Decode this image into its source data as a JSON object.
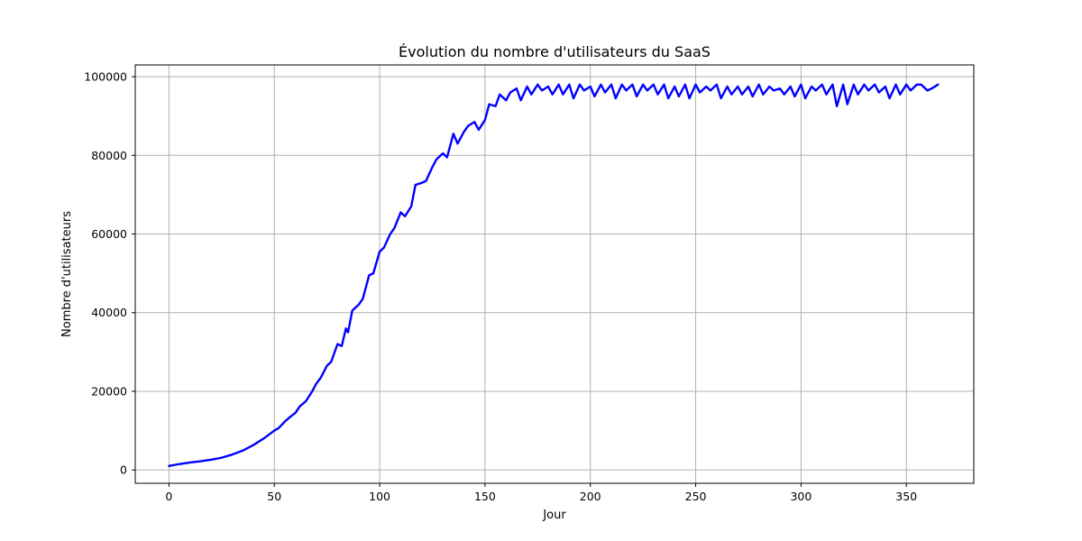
{
  "chart_data": {
    "type": "line",
    "title": "Évolution du nombre d'utilisateurs du SaaS",
    "xlabel": "Jour",
    "ylabel": "Nombre d'utilisateurs",
    "xlim": [
      -16,
      382
    ],
    "ylim": [
      -3400,
      103000
    ],
    "xticks": [
      0,
      50,
      100,
      150,
      200,
      250,
      300,
      350
    ],
    "yticks": [
      0,
      20000,
      40000,
      60000,
      80000,
      100000
    ],
    "grid": true,
    "colors": {
      "line": "#0000ff",
      "grid": "#b0b0b0",
      "axes": "#000000"
    },
    "series": [
      {
        "name": "",
        "x": [
          0,
          5,
          10,
          15,
          20,
          25,
          30,
          35,
          40,
          45,
          50,
          52,
          55,
          58,
          60,
          62,
          65,
          68,
          70,
          72,
          75,
          77,
          80,
          82,
          84,
          85,
          87,
          90,
          92,
          95,
          97,
          100,
          102,
          105,
          107,
          110,
          112,
          115,
          117,
          120,
          122,
          125,
          127,
          130,
          132,
          135,
          137,
          140,
          142,
          145,
          147,
          150,
          152,
          155,
          157,
          160,
          162,
          165,
          167,
          170,
          172,
          175,
          177,
          180,
          182,
          185,
          187,
          190,
          192,
          195,
          197,
          200,
          202,
          205,
          207,
          210,
          212,
          215,
          217,
          220,
          222,
          225,
          227,
          230,
          232,
          235,
          237,
          240,
          242,
          245,
          247,
          250,
          252,
          255,
          257,
          260,
          262,
          265,
          267,
          270,
          272,
          275,
          277,
          280,
          282,
          285,
          287,
          290,
          292,
          295,
          297,
          300,
          302,
          305,
          307,
          310,
          312,
          315,
          317,
          320,
          322,
          325,
          327,
          330,
          332,
          335,
          337,
          340,
          342,
          345,
          347,
          350,
          352,
          355,
          357,
          360,
          362,
          365
        ],
        "y": [
          1000,
          1500,
          1900,
          2200,
          2600,
          3100,
          3900,
          4900,
          6300,
          8000,
          10000,
          10600,
          12300,
          13700,
          14500,
          16100,
          17500,
          20000,
          22000,
          23400,
          26500,
          27500,
          32000,
          31500,
          36000,
          35000,
          40500,
          42000,
          43500,
          49500,
          50000,
          55500,
          56500,
          60000,
          61500,
          65500,
          64500,
          67000,
          72500,
          73000,
          73500,
          77000,
          79000,
          80500,
          79500,
          85500,
          83000,
          86000,
          87500,
          88500,
          86500,
          89000,
          93000,
          92500,
          95500,
          94000,
          96000,
          97000,
          94000,
          97500,
          95500,
          98000,
          96500,
          97500,
          95500,
          98000,
          95500,
          98000,
          94500,
          98000,
          96500,
          97500,
          95000,
          98000,
          96000,
          98000,
          94500,
          98000,
          96500,
          98000,
          95000,
          98000,
          96500,
          98000,
          95500,
          98000,
          94500,
          97500,
          95000,
          98000,
          94500,
          98000,
          96000,
          97500,
          96500,
          98000,
          94500,
          97500,
          95500,
          97500,
          95500,
          97500,
          95000,
          98000,
          95500,
          97500,
          96500,
          97000,
          95500,
          97500,
          95000,
          98000,
          94500,
          97500,
          96500,
          98000,
          95500,
          98000,
          92500,
          98000,
          93000,
          98000,
          95500,
          98000,
          96500,
          98000,
          96000,
          97500,
          94500,
          98000,
          95500,
          98000,
          96500,
          98000,
          98000,
          96500,
          97000,
          98000
        ]
      }
    ]
  }
}
